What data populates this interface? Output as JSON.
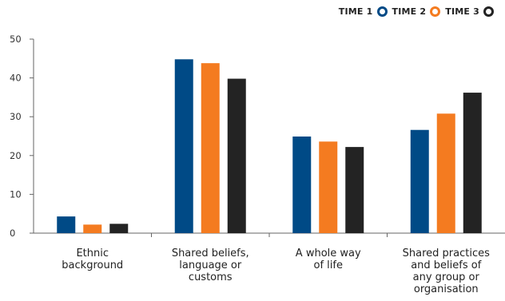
{
  "chart_data": {
    "type": "bar",
    "title": "",
    "xlabel": "",
    "ylabel": "",
    "ylim": [
      0,
      50
    ],
    "yticks": [
      0,
      10,
      20,
      30,
      40,
      50
    ],
    "grid": false,
    "legend_position": "top-right",
    "categories": [
      [
        "Ethnic",
        "background"
      ],
      [
        "Shared beliefs,",
        "language or",
        "customs"
      ],
      [
        "A whole way",
        "of life"
      ],
      [
        "Shared practices",
        "and beliefs of",
        "any group or",
        "organisation"
      ]
    ],
    "series": [
      {
        "name": "TIME 1",
        "color": "#004a86",
        "values": [
          4.3,
          44.8,
          24.9,
          26.6
        ]
      },
      {
        "name": "TIME 2",
        "color": "#f47b20",
        "values": [
          2.2,
          43.8,
          23.6,
          30.8
        ]
      },
      {
        "name": "TIME 3",
        "color": "#232323",
        "values": [
          2.4,
          39.8,
          22.2,
          36.2
        ]
      }
    ]
  }
}
